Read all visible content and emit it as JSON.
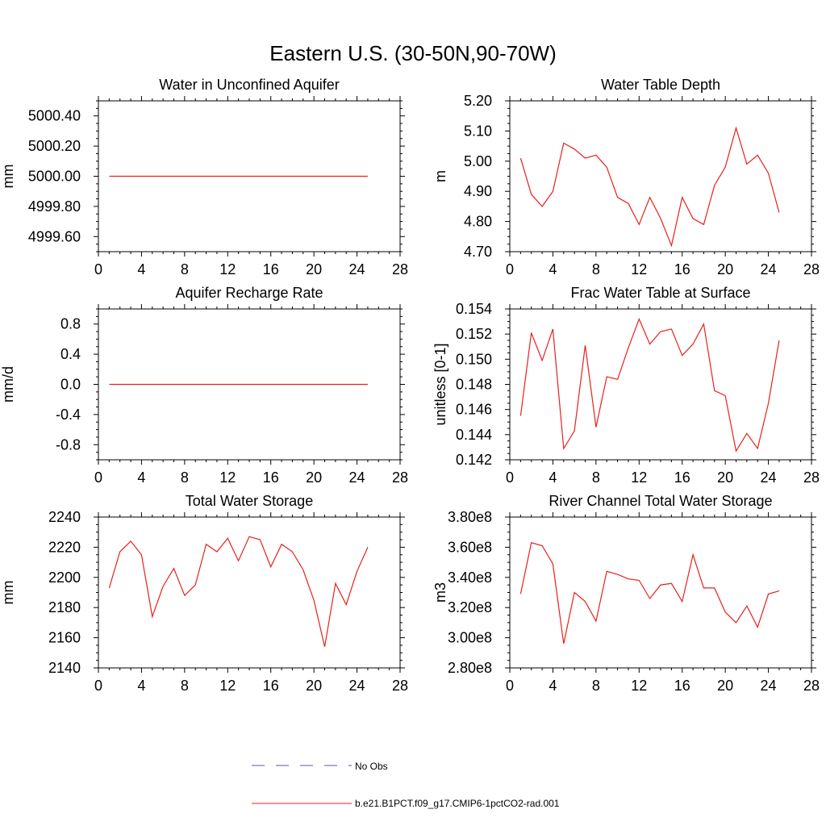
{
  "figure": {
    "title": "Eastern U.S. (30-50N,90-70W)",
    "legend": {
      "placement": "bottom-center",
      "entries": [
        {
          "label": "No Obs",
          "color": "#5a5aa0",
          "style": "dashed"
        },
        {
          "label": "b.e21.B1PCT.f09_g17.CMIP6-1pctCO2-rad.001",
          "color": "#e8201c",
          "style": "solid"
        }
      ]
    }
  },
  "chart_data": [
    {
      "type": "line",
      "title": "Water in Unconfined Aquifer",
      "xlabel": "",
      "ylabel": "mm",
      "xlim": [
        0,
        28
      ],
      "ylim": [
        4999.5,
        5000.5
      ],
      "xticks": [
        0,
        4,
        8,
        12,
        16,
        20,
        24,
        28
      ],
      "yticks": [
        4999.6,
        4999.8,
        5000.0,
        5000.2,
        5000.4
      ],
      "yticklabels": [
        "4999.60",
        "4999.80",
        "5000.00",
        "5000.20",
        "5000.40"
      ],
      "ytickdecimals": 2,
      "x": [
        1,
        25
      ],
      "series": [
        {
          "values": [
            5000.0,
            5000.0
          ],
          "color": "#e8201c"
        }
      ]
    },
    {
      "type": "line",
      "title": "Water Table Depth",
      "xlabel": "",
      "ylabel": "m",
      "xlim": [
        0,
        28
      ],
      "ylim": [
        4.7,
        5.2
      ],
      "xticks": [
        0,
        4,
        8,
        12,
        16,
        20,
        24,
        28
      ],
      "yticks": [
        4.7,
        4.8,
        4.9,
        5.0,
        5.1,
        5.2
      ],
      "yticklabels": [
        "4.70",
        "4.80",
        "4.90",
        "5.00",
        "5.10",
        "5.20"
      ],
      "ytickdecimals": 2,
      "x": [
        1,
        2,
        3,
        4,
        5,
        6,
        7,
        8,
        9,
        10,
        11,
        12,
        13,
        14,
        15,
        16,
        17,
        18,
        19,
        20,
        21,
        22,
        23,
        24,
        25
      ],
      "series": [
        {
          "values": [
            5.01,
            4.89,
            4.85,
            4.9,
            5.06,
            5.04,
            5.01,
            5.02,
            4.98,
            4.88,
            4.86,
            4.79,
            4.88,
            4.81,
            4.72,
            4.88,
            4.81,
            4.79,
            4.92,
            4.98,
            5.11,
            4.99,
            5.02,
            4.96,
            4.83
          ],
          "color": "#e8201c"
        }
      ]
    },
    {
      "type": "line",
      "title": "Aquifer Recharge Rate",
      "xlabel": "",
      "ylabel": "mm/d",
      "xlim": [
        0,
        28
      ],
      "ylim": [
        -1.0,
        1.0
      ],
      "xticks": [
        0,
        4,
        8,
        12,
        16,
        20,
        24,
        28
      ],
      "yticks": [
        -0.8,
        -0.4,
        0.0,
        0.4,
        0.8
      ],
      "yticklabels": [
        "-0.8",
        "-0.4",
        "0.0",
        "0.4",
        "0.8"
      ],
      "ytickdecimals": 1,
      "x": [
        1,
        25
      ],
      "series": [
        {
          "values": [
            0.0,
            0.0
          ],
          "color": "#e8201c"
        }
      ]
    },
    {
      "type": "line",
      "title": "Frac Water Table at Surface",
      "xlabel": "",
      "ylabel": "unitless [0-1]",
      "xlim": [
        0,
        28
      ],
      "ylim": [
        0.142,
        0.154
      ],
      "xticks": [
        0,
        4,
        8,
        12,
        16,
        20,
        24,
        28
      ],
      "yticks": [
        0.142,
        0.144,
        0.146,
        0.148,
        0.15,
        0.152,
        0.154
      ],
      "yticklabels": [
        "0.142",
        "0.144",
        "0.146",
        "0.148",
        "0.150",
        "0.152",
        "0.154"
      ],
      "ytickdecimals": 3,
      "x": [
        1,
        2,
        3,
        4,
        5,
        6,
        7,
        8,
        9,
        10,
        11,
        12,
        13,
        14,
        15,
        16,
        17,
        18,
        19,
        20,
        21,
        22,
        23,
        24,
        25
      ],
      "series": [
        {
          "values": [
            0.1455,
            0.1521,
            0.1499,
            0.1524,
            0.1429,
            0.1443,
            0.1511,
            0.1446,
            0.1486,
            0.1484,
            0.1509,
            0.1532,
            0.1512,
            0.1522,
            0.1524,
            0.1503,
            0.1512,
            0.1528,
            0.1475,
            0.1471,
            0.1427,
            0.1441,
            0.1429,
            0.1465,
            0.1515
          ],
          "color": "#e8201c"
        }
      ]
    },
    {
      "type": "line",
      "title": "Total Water Storage",
      "xlabel": "",
      "ylabel": "mm",
      "xlim": [
        0,
        28
      ],
      "ylim": [
        2140,
        2240
      ],
      "xticks": [
        0,
        4,
        8,
        12,
        16,
        20,
        24,
        28
      ],
      "yticks": [
        2140,
        2160,
        2180,
        2200,
        2220,
        2240
      ],
      "yticklabels": [
        "2140",
        "2160",
        "2180",
        "2200",
        "2220",
        "2240"
      ],
      "ytickdecimals": 0,
      "x": [
        1,
        2,
        3,
        4,
        5,
        6,
        7,
        8,
        9,
        10,
        11,
        12,
        13,
        14,
        15,
        16,
        17,
        18,
        19,
        20,
        21,
        22,
        23,
        24,
        25
      ],
      "series": [
        {
          "values": [
            2193,
            2217,
            2224,
            2215,
            2174,
            2194,
            2206,
            2188,
            2195,
            2222,
            2217,
            2226,
            2211,
            2227,
            2225,
            2207,
            2222,
            2217,
            2205,
            2185,
            2154,
            2196,
            2182,
            2204,
            2220
          ],
          "color": "#e8201c"
        }
      ]
    },
    {
      "type": "line",
      "title": "River Channel Total Water Storage",
      "xlabel": "",
      "ylabel": "m3",
      "xlim": [
        0,
        28
      ],
      "ylim": [
        280000000.0,
        380000000.0
      ],
      "xticks": [
        0,
        4,
        8,
        12,
        16,
        20,
        24,
        28
      ],
      "yticks": [
        280000000.0,
        300000000.0,
        320000000.0,
        340000000.0,
        360000000.0,
        380000000.0
      ],
      "yticklabels": [
        "2.80e8",
        "3.00e8",
        "3.20e8",
        "3.40e8",
        "3.60e8",
        "3.80e8"
      ],
      "ytickdecimals": 2,
      "x": [
        1,
        2,
        3,
        4,
        5,
        6,
        7,
        8,
        9,
        10,
        11,
        12,
        13,
        14,
        15,
        16,
        17,
        18,
        19,
        20,
        21,
        22,
        23,
        24,
        25
      ],
      "series": [
        {
          "values": [
            329000000.0,
            363000000.0,
            361000000.0,
            349000000.0,
            296000000.0,
            330000000.0,
            324000000.0,
            311000000.0,
            344000000.0,
            342000000.0,
            339000000.0,
            338000000.0,
            326000000.0,
            335000000.0,
            336000000.0,
            324000000.0,
            355000000.0,
            333000000.0,
            333000000.0,
            317000000.0,
            310000000.0,
            321000000.0,
            307000000.0,
            329000000.0,
            331000000.0
          ],
          "color": "#e8201c"
        }
      ]
    }
  ]
}
